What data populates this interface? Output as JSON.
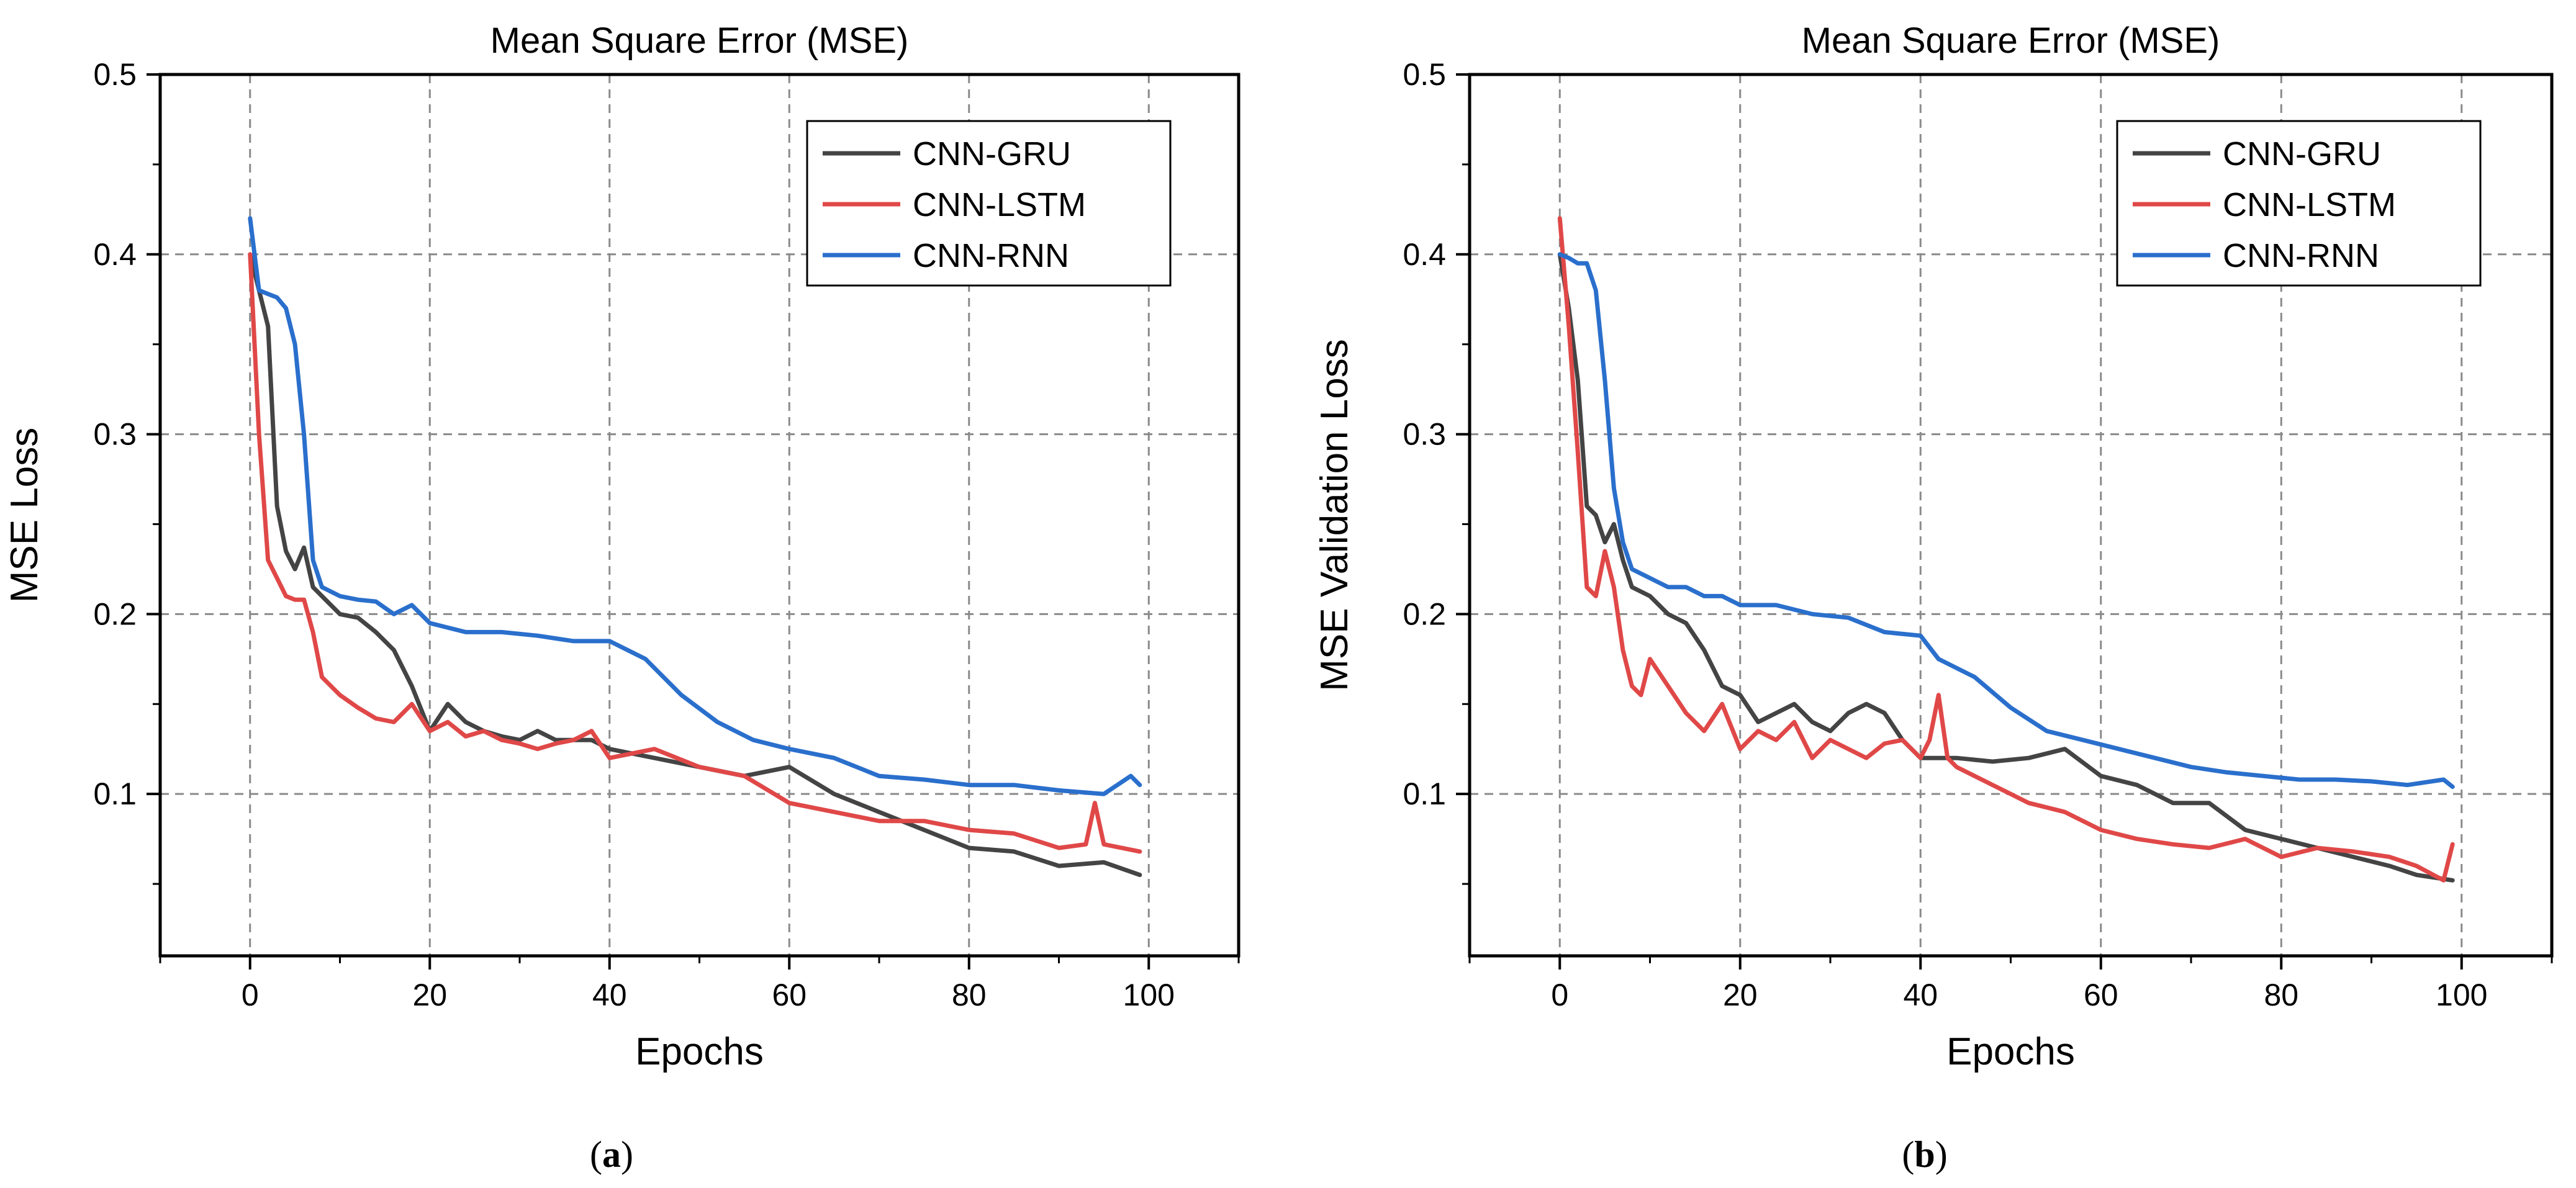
{
  "colors": {
    "CNN-GRU": "#444444",
    "CNN-LSTM": "#e04848",
    "CNN-RNN": "#2a6fcc",
    "grid": "#8a8a8a",
    "axis": "#000000"
  },
  "chart_data": [
    {
      "type": "line",
      "caption": "(a)",
      "caption_letter": "a",
      "title": "Mean Square Error (MSE)",
      "xlabel": "Epochs",
      "ylabel": "MSE Loss",
      "xlim": [
        -10,
        110
      ],
      "ylim": [
        0.01,
        0.5
      ],
      "xticks": [
        0,
        20,
        40,
        60,
        80,
        100
      ],
      "yticks": [
        0.1,
        0.2,
        0.3,
        0.4,
        0.5
      ],
      "ytick_labels": [
        "0.1",
        "0.2",
        "0.3",
        "0.4",
        "0.5"
      ],
      "grid": true,
      "legend": "top-right",
      "series": [
        {
          "name": "CNN-GRU",
          "x": [
            0,
            1,
            2,
            3,
            4,
            5,
            6,
            7,
            8,
            10,
            12,
            14,
            16,
            18,
            20,
            22,
            24,
            26,
            28,
            30,
            32,
            34,
            36,
            38,
            40,
            45,
            50,
            55,
            60,
            65,
            70,
            75,
            80,
            85,
            90,
            95,
            99
          ],
          "y": [
            0.4,
            0.38,
            0.36,
            0.26,
            0.235,
            0.225,
            0.237,
            0.215,
            0.21,
            0.2,
            0.198,
            0.19,
            0.18,
            0.16,
            0.135,
            0.15,
            0.14,
            0.135,
            0.132,
            0.13,
            0.135,
            0.13,
            0.13,
            0.13,
            0.125,
            0.12,
            0.115,
            0.11,
            0.115,
            0.1,
            0.09,
            0.08,
            0.07,
            0.068,
            0.06,
            0.062,
            0.055
          ]
        },
        {
          "name": "CNN-LSTM",
          "x": [
            0,
            1,
            2,
            3,
            4,
            5,
            6,
            7,
            8,
            10,
            12,
            14,
            16,
            18,
            20,
            22,
            24,
            26,
            28,
            30,
            32,
            34,
            36,
            38,
            40,
            45,
            50,
            55,
            60,
            65,
            70,
            75,
            80,
            85,
            90,
            93,
            94,
            95,
            99
          ],
          "y": [
            0.4,
            0.3,
            0.23,
            0.22,
            0.21,
            0.208,
            0.208,
            0.19,
            0.165,
            0.155,
            0.148,
            0.142,
            0.14,
            0.15,
            0.135,
            0.14,
            0.132,
            0.135,
            0.13,
            0.128,
            0.125,
            0.128,
            0.13,
            0.135,
            0.12,
            0.125,
            0.115,
            0.11,
            0.095,
            0.09,
            0.085,
            0.085,
            0.08,
            0.078,
            0.07,
            0.072,
            0.095,
            0.072,
            0.068
          ]
        },
        {
          "name": "CNN-RNN",
          "x": [
            0,
            1,
            2,
            3,
            4,
            5,
            6,
            7,
            8,
            10,
            12,
            14,
            16,
            18,
            20,
            24,
            28,
            32,
            36,
            40,
            44,
            48,
            52,
            56,
            60,
            65,
            70,
            75,
            80,
            85,
            90,
            95,
            98,
            99
          ],
          "y": [
            0.42,
            0.38,
            0.378,
            0.376,
            0.37,
            0.35,
            0.3,
            0.23,
            0.215,
            0.21,
            0.208,
            0.207,
            0.2,
            0.205,
            0.195,
            0.19,
            0.19,
            0.188,
            0.185,
            0.185,
            0.175,
            0.155,
            0.14,
            0.13,
            0.125,
            0.12,
            0.11,
            0.108,
            0.105,
            0.105,
            0.102,
            0.1,
            0.11,
            0.105
          ]
        }
      ]
    },
    {
      "type": "line",
      "caption": "(b)",
      "caption_letter": "b",
      "title": "Mean Square Error (MSE)",
      "xlabel": "Epochs",
      "ylabel": "MSE Validation Loss",
      "xlim": [
        -10,
        110
      ],
      "ylim": [
        0.01,
        0.5
      ],
      "xticks": [
        0,
        20,
        40,
        60,
        80,
        100
      ],
      "yticks": [
        0.1,
        0.2,
        0.3,
        0.4,
        0.5
      ],
      "ytick_labels": [
        "0.1",
        "0.2",
        "0.3",
        "0.4",
        "0.5"
      ],
      "grid": true,
      "legend": "top-right",
      "series": [
        {
          "name": "CNN-GRU",
          "x": [
            0,
            1,
            2,
            3,
            4,
            5,
            6,
            7,
            8,
            10,
            12,
            14,
            16,
            18,
            20,
            22,
            24,
            26,
            28,
            30,
            32,
            34,
            36,
            38,
            40,
            44,
            48,
            52,
            56,
            60,
            64,
            68,
            72,
            76,
            80,
            84,
            88,
            92,
            95,
            99
          ],
          "y": [
            0.4,
            0.37,
            0.33,
            0.26,
            0.255,
            0.24,
            0.25,
            0.23,
            0.215,
            0.21,
            0.2,
            0.195,
            0.18,
            0.16,
            0.155,
            0.14,
            0.145,
            0.15,
            0.14,
            0.135,
            0.145,
            0.15,
            0.145,
            0.13,
            0.12,
            0.12,
            0.118,
            0.12,
            0.125,
            0.11,
            0.105,
            0.095,
            0.095,
            0.08,
            0.075,
            0.07,
            0.065,
            0.06,
            0.055,
            0.052
          ]
        },
        {
          "name": "CNN-LSTM",
          "x": [
            0,
            1,
            2,
            3,
            4,
            5,
            6,
            7,
            8,
            9,
            10,
            12,
            14,
            16,
            18,
            20,
            22,
            24,
            26,
            28,
            30,
            32,
            34,
            36,
            38,
            40,
            41,
            42,
            43,
            44,
            48,
            52,
            56,
            60,
            64,
            68,
            72,
            76,
            80,
            84,
            88,
            92,
            95,
            98,
            99
          ],
          "y": [
            0.42,
            0.36,
            0.29,
            0.215,
            0.21,
            0.235,
            0.215,
            0.18,
            0.16,
            0.155,
            0.175,
            0.16,
            0.145,
            0.135,
            0.15,
            0.125,
            0.135,
            0.13,
            0.14,
            0.12,
            0.13,
            0.125,
            0.12,
            0.128,
            0.13,
            0.12,
            0.13,
            0.155,
            0.12,
            0.115,
            0.105,
            0.095,
            0.09,
            0.08,
            0.075,
            0.072,
            0.07,
            0.075,
            0.065,
            0.07,
            0.068,
            0.065,
            0.06,
            0.052,
            0.072
          ]
        },
        {
          "name": "CNN-RNN",
          "x": [
            0,
            1,
            2,
            3,
            4,
            5,
            6,
            7,
            8,
            10,
            12,
            14,
            16,
            18,
            20,
            24,
            28,
            32,
            36,
            40,
            42,
            46,
            50,
            54,
            58,
            62,
            66,
            70,
            74,
            78,
            82,
            86,
            90,
            94,
            98,
            99
          ],
          "y": [
            0.4,
            0.398,
            0.395,
            0.395,
            0.38,
            0.33,
            0.27,
            0.24,
            0.225,
            0.22,
            0.215,
            0.215,
            0.21,
            0.21,
            0.205,
            0.205,
            0.2,
            0.198,
            0.19,
            0.188,
            0.175,
            0.165,
            0.148,
            0.135,
            0.13,
            0.125,
            0.12,
            0.115,
            0.112,
            0.11,
            0.108,
            0.108,
            0.107,
            0.105,
            0.108,
            0.104
          ]
        }
      ]
    }
  ]
}
